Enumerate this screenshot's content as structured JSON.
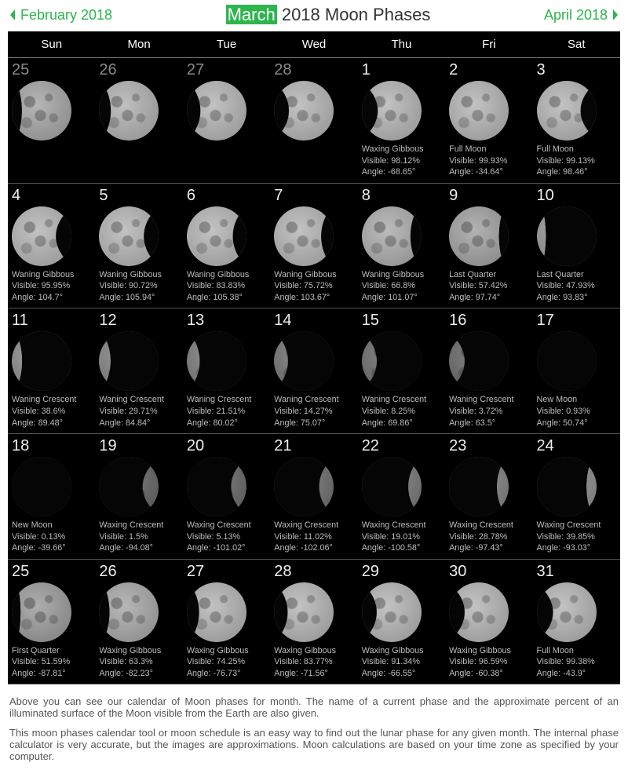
{
  "nav": {
    "prev": "February 2018",
    "next": "April 2018"
  },
  "title": {
    "highlight": "March",
    "rest": " 2018 Moon Phases"
  },
  "dayHeaders": [
    "Sun",
    "Mon",
    "Tue",
    "Wed",
    "Thu",
    "Fri",
    "Sat"
  ],
  "colors": {
    "accent": "#2eb54e",
    "moonLight": "#7a7a7a",
    "moonDark": "#050505"
  },
  "weeks": [
    [
      {
        "d": "25",
        "prev": true,
        "lit": 0.6,
        "dir": "R"
      },
      {
        "d": "26",
        "prev": true,
        "lit": 0.72,
        "dir": "R"
      },
      {
        "d": "27",
        "prev": true,
        "lit": 0.83,
        "dir": "R"
      },
      {
        "d": "28",
        "prev": true,
        "lit": 0.92,
        "dir": "R"
      },
      {
        "d": "1",
        "lit": 0.981,
        "dir": "R",
        "ph": "Waxing Gibbous",
        "vis": "98.12%",
        "ang": "-68.65°"
      },
      {
        "d": "2",
        "lit": 0.999,
        "dir": "R",
        "ph": "Full Moon",
        "vis": "99.93%",
        "ang": "-34.64°"
      },
      {
        "d": "3",
        "lit": 0.991,
        "dir": "L",
        "ph": "Full Moon",
        "vis": "99.13%",
        "ang": "98.46°"
      }
    ],
    [
      {
        "d": "4",
        "lit": 0.96,
        "dir": "L",
        "ph": "Waning Gibbous",
        "vis": "95.95%",
        "ang": "104.7°"
      },
      {
        "d": "5",
        "lit": 0.907,
        "dir": "L",
        "ph": "Waning Gibbous",
        "vis": "90.72%",
        "ang": "105.94°"
      },
      {
        "d": "6",
        "lit": 0.838,
        "dir": "L",
        "ph": "Waning Gibbous",
        "vis": "83.83%",
        "ang": "105.38°"
      },
      {
        "d": "7",
        "lit": 0.757,
        "dir": "L",
        "ph": "Waning Gibbous",
        "vis": "75.72%",
        "ang": "103.67°"
      },
      {
        "d": "8",
        "lit": 0.668,
        "dir": "L",
        "ph": "Waning Gibbous",
        "vis": "66.8%",
        "ang": "101.07°"
      },
      {
        "d": "9",
        "lit": 0.574,
        "dir": "L",
        "ph": "Last Quarter",
        "vis": "57.42%",
        "ang": "97.74°"
      },
      {
        "d": "10",
        "lit": 0.479,
        "dir": "L",
        "ph": "Last Quarter",
        "vis": "47.93%",
        "ang": "93.83°"
      }
    ],
    [
      {
        "d": "11",
        "lit": 0.386,
        "dir": "L",
        "ph": "Waning Crescent",
        "vis": "38.6%",
        "ang": "89.48°"
      },
      {
        "d": "12",
        "lit": 0.297,
        "dir": "L",
        "ph": "Waning Crescent",
        "vis": "29.71%",
        "ang": "84.84°"
      },
      {
        "d": "13",
        "lit": 0.215,
        "dir": "L",
        "ph": "Waning Crescent",
        "vis": "21.51%",
        "ang": "80.02°"
      },
      {
        "d": "14",
        "lit": 0.143,
        "dir": "L",
        "ph": "Waning Crescent",
        "vis": "14.27%",
        "ang": "75.07°"
      },
      {
        "d": "15",
        "lit": 0.083,
        "dir": "L",
        "ph": "Waning Crescent",
        "vis": "8.25%",
        "ang": "69.86°"
      },
      {
        "d": "16",
        "lit": 0.037,
        "dir": "L",
        "ph": "Waning Crescent",
        "vis": "3.72%",
        "ang": "63.5°"
      },
      {
        "d": "17",
        "lit": 0.009,
        "dir": "L",
        "ph": "New Moon",
        "vis": "0.93%",
        "ang": "50.74°"
      }
    ],
    [
      {
        "d": "18",
        "lit": 0.001,
        "dir": "R",
        "ph": "New Moon",
        "vis": "0.13%",
        "ang": "-39.66°"
      },
      {
        "d": "19",
        "lit": 0.015,
        "dir": "R",
        "ph": "Waxing Crescent",
        "vis": "1.5%",
        "ang": "-94.08°"
      },
      {
        "d": "20",
        "lit": 0.051,
        "dir": "R",
        "ph": "Waxing Crescent",
        "vis": "5.13%",
        "ang": "-101.02°"
      },
      {
        "d": "21",
        "lit": 0.11,
        "dir": "R",
        "ph": "Waxing Crescent",
        "vis": "11.02%",
        "ang": "-102.06°"
      },
      {
        "d": "22",
        "lit": 0.19,
        "dir": "R",
        "ph": "Waxing Crescent",
        "vis": "19.01%",
        "ang": "-100.58°"
      },
      {
        "d": "23",
        "lit": 0.288,
        "dir": "R",
        "ph": "Waxing Crescent",
        "vis": "28.78%",
        "ang": "-97.43°"
      },
      {
        "d": "24",
        "lit": 0.399,
        "dir": "R",
        "ph": "Waxing Crescent",
        "vis": "39.85%",
        "ang": "-93.03°"
      }
    ],
    [
      {
        "d": "25",
        "lit": 0.516,
        "dir": "R",
        "ph": "First Quarter",
        "vis": "51.59%",
        "ang": "-87.81°"
      },
      {
        "d": "26",
        "lit": 0.633,
        "dir": "R",
        "ph": "Waxing Gibbous",
        "vis": "63.3%",
        "ang": "-82.23°"
      },
      {
        "d": "27",
        "lit": 0.743,
        "dir": "R",
        "ph": "Waxing Gibbous",
        "vis": "74.25%",
        "ang": "-76.73°"
      },
      {
        "d": "28",
        "lit": 0.838,
        "dir": "R",
        "ph": "Waxing Gibbous",
        "vis": "83.77%",
        "ang": "-71.56°"
      },
      {
        "d": "29",
        "lit": 0.913,
        "dir": "R",
        "ph": "Waxing Gibbous",
        "vis": "91.34%",
        "ang": "-66.55°"
      },
      {
        "d": "30",
        "lit": 0.966,
        "dir": "R",
        "ph": "Waxing Gibbous",
        "vis": "96.59%",
        "ang": "-60.38°"
      },
      {
        "d": "31",
        "lit": 0.994,
        "dir": "R",
        "ph": "Full Moon",
        "vis": "99.38%",
        "ang": "-43.9°"
      }
    ]
  ],
  "desc": {
    "p1": "Above you can see our calendar of Moon phases for month. The name of a current phase and the approximate percent of an illuminated surface of the Moon visible from the Earth are also given.",
    "p2": "This moon phases calendar tool or moon schedule is an easy way to find out the lunar phase for any given month. The internal phase calculator is very accurate, but the images are approximations. Moon calculations are based on your time zone as specified by your computer."
  }
}
